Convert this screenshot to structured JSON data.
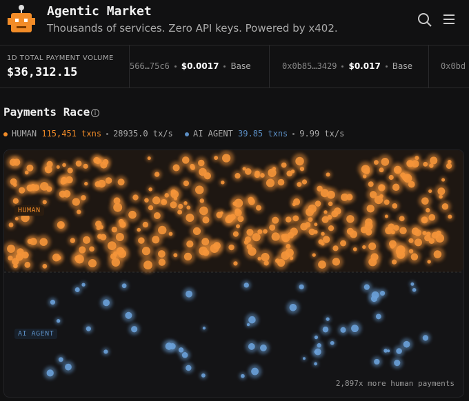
{
  "header": {
    "title": "Agentic Market",
    "subtitle": "Thousands of services. Zero API keys. Powered by x402."
  },
  "ticker": {
    "label": "1D TOTAL PAYMENT VOLUME",
    "value": "$36,312.15",
    "items": [
      {
        "address": "566…75c6",
        "price": "$0.0017",
        "chain": "Base"
      },
      {
        "address": "0x0b85…3429",
        "price": "$0.017",
        "chain": "Base"
      },
      {
        "address": "0x0bd"
      }
    ]
  },
  "race": {
    "title": "Payments Race",
    "human": {
      "label": "HUMAN",
      "txns": "115,451 txns",
      "rate": "28935.0 tx/s"
    },
    "agent": {
      "label": "AI AGENT",
      "txns": "39.85 txns",
      "rate": "9.99 tx/s"
    },
    "footer": "2,897x more human payments"
  }
}
